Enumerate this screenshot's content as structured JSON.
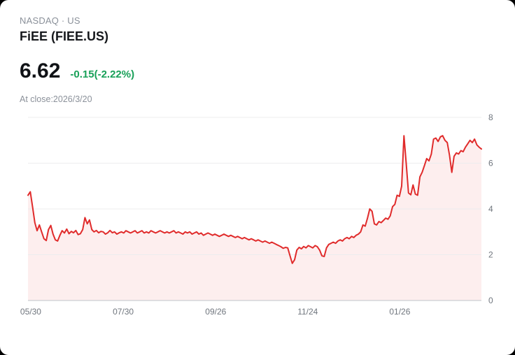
{
  "header": {
    "exchange_line": "NASDAQ · US",
    "title": "FiEE (FIEE.US)"
  },
  "quote": {
    "price": "6.62",
    "change": "-0.15(-2.22%)",
    "change_color": "#18a058",
    "close_note": "At close:2026/3/20"
  },
  "chart_data": {
    "type": "line",
    "ylabel": "",
    "xlabel": "",
    "ylim": [
      0,
      8
    ],
    "y_ticks": [
      0,
      2,
      4,
      6,
      8
    ],
    "x_tick_labels": [
      "05/30",
      "07/30",
      "09/26",
      "11/24",
      "01/26"
    ],
    "x_tick_positions": [
      0.006,
      0.21,
      0.414,
      0.617,
      0.82
    ],
    "line_color": "#e02b2b",
    "fill_color": "#e02b2b",
    "fill_opacity": 0.08,
    "grid_color": "#ececee",
    "axis_color": "#bfc4ca",
    "tick_text_color": "#70767e",
    "values": [
      4.6,
      4.75,
      4.1,
      3.4,
      3.05,
      3.3,
      3.0,
      2.7,
      2.62,
      3.1,
      3.28,
      2.9,
      2.65,
      2.6,
      2.85,
      3.05,
      2.95,
      3.12,
      2.92,
      3.02,
      2.96,
      3.06,
      2.88,
      2.92,
      3.1,
      3.62,
      3.35,
      3.52,
      3.1,
      3.0,
      3.06,
      2.96,
      3.02,
      3.0,
      2.9,
      2.96,
      3.06,
      2.96,
      3.0,
      2.9,
      2.96,
      3.0,
      2.95,
      3.05,
      3.0,
      2.95,
      3.0,
      3.05,
      2.95,
      3.0,
      3.05,
      2.95,
      3.0,
      2.95,
      3.05,
      3.0,
      2.95,
      3.0,
      3.05,
      3.0,
      2.95,
      3.0,
      2.95,
      3.0,
      3.05,
      2.95,
      3.0,
      2.95,
      2.9,
      3.0,
      2.95,
      3.0,
      2.9,
      2.95,
      3.0,
      2.9,
      2.95,
      2.85,
      2.9,
      2.95,
      2.9,
      2.85,
      2.9,
      2.85,
      2.8,
      2.85,
      2.9,
      2.85,
      2.8,
      2.85,
      2.8,
      2.75,
      2.8,
      2.75,
      2.7,
      2.75,
      2.7,
      2.65,
      2.7,
      2.65,
      2.6,
      2.65,
      2.6,
      2.55,
      2.6,
      2.55,
      2.5,
      2.55,
      2.5,
      2.45,
      2.4,
      2.35,
      2.28,
      2.32,
      2.3,
      1.95,
      1.62,
      1.78,
      2.2,
      2.32,
      2.26,
      2.36,
      2.3,
      2.4,
      2.35,
      2.3,
      2.4,
      2.35,
      2.2,
      1.95,
      1.92,
      2.3,
      2.45,
      2.5,
      2.55,
      2.5,
      2.6,
      2.65,
      2.6,
      2.7,
      2.75,
      2.7,
      2.8,
      2.75,
      2.85,
      2.9,
      3.0,
      3.3,
      3.25,
      3.6,
      4.0,
      3.9,
      3.35,
      3.3,
      3.45,
      3.4,
      3.5,
      3.6,
      3.55,
      3.7,
      4.1,
      4.2,
      4.6,
      4.55,
      5.0,
      7.2,
      6.0,
      4.7,
      4.62,
      5.05,
      4.65,
      4.6,
      5.4,
      5.6,
      5.9,
      6.2,
      6.1,
      6.4,
      7.05,
      7.1,
      6.95,
      7.15,
      7.2,
      7.0,
      6.9,
      6.35,
      5.6,
      6.3,
      6.45,
      6.4,
      6.55,
      6.5,
      6.7,
      6.85,
      7.0,
      6.9,
      7.05,
      6.8,
      6.7,
      6.62
    ]
  }
}
